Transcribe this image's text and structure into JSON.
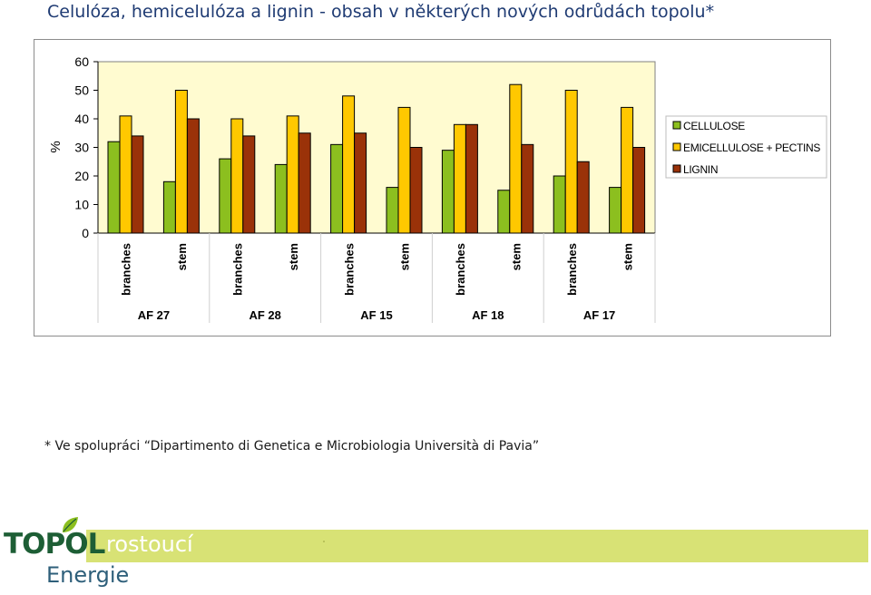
{
  "slide": {
    "title": "Celulóza, hemicelulóza a lignin - obsah v některých nových odrůdách topolu*",
    "footnote": "* Ve spolupráci “Dipartimento di Genetica e Microbiologia Università di Pavia”",
    "brand": "TOPOL",
    "brand_sub1": "rostoucí",
    "brand_sub2": "Energie"
  },
  "colors": {
    "cellulose": "#8cbf1f",
    "hemicellulose": "#ffc800",
    "lignin": "#9a3209",
    "plot_bg": "#fffbd0",
    "band": "#d8e275"
  },
  "chart_data": {
    "type": "bar",
    "ylabel": "%",
    "ylim": [
      0,
      60
    ],
    "yticks": [
      "0",
      "10",
      "20",
      "30",
      "40",
      "50",
      "60"
    ],
    "categories": [
      "branches",
      "stem",
      "branches",
      "stem",
      "branches",
      "stem",
      "branches",
      "stem",
      "branches",
      "stem"
    ],
    "groups": [
      "AF 27",
      "AF 28",
      "AF 15",
      "AF 18",
      "AF 17"
    ],
    "series": [
      {
        "name": "CELLULOSE",
        "values": [
          32,
          18,
          26,
          24,
          31,
          16,
          29,
          15,
          20,
          16
        ]
      },
      {
        "name": "EMICELLULOSE + PECTINS",
        "values": [
          41,
          50,
          40,
          41,
          48,
          44,
          38,
          52,
          50,
          44
        ]
      },
      {
        "name": "LIGNIN",
        "values": [
          34,
          40,
          34,
          35,
          35,
          30,
          38,
          31,
          25,
          30
        ]
      }
    ],
    "legend_position": "right",
    "grid": false
  }
}
